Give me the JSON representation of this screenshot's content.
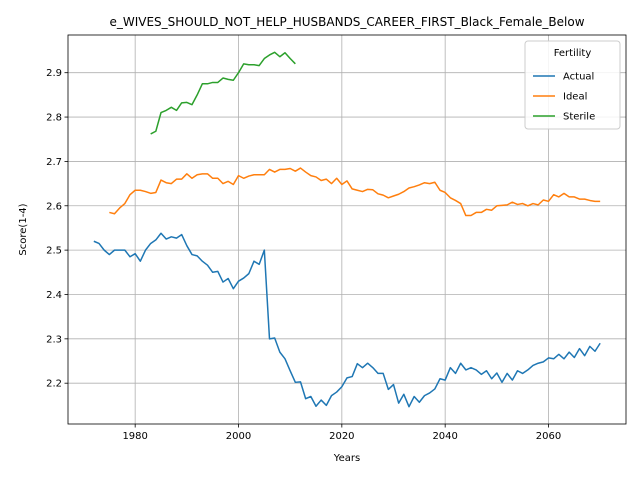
{
  "chart_data": {
    "type": "line",
    "title": "e_WIVES_SHOULD_NOT_HELP_HUSBANDS_CAREER_FIRST_Black_Female_Below",
    "xlabel": "Years",
    "ylabel": "Score(1-4)",
    "xlim": [
      1967,
      2075
    ],
    "ylim": [
      2.108,
      2.985
    ],
    "xticks": [
      1980,
      2000,
      2020,
      2040,
      2060
    ],
    "yticks": [
      2.2,
      2.3,
      2.4,
      2.5,
      2.6,
      2.7,
      2.8,
      2.9
    ],
    "grid": true,
    "legend": {
      "title": "Fertility",
      "position": "top-right"
    },
    "colors": {
      "Actual": "#1f77b4",
      "Ideal": "#ff7f0e",
      "Sterile": "#2ca02c"
    },
    "series": [
      {
        "name": "Actual",
        "x": [
          1972,
          1973,
          1974,
          1975,
          1976,
          1977,
          1978,
          1979,
          1980,
          1981,
          1982,
          1983,
          1984,
          1985,
          1986,
          1987,
          1988,
          1989,
          1990,
          1991,
          1992,
          1993,
          1994,
          1995,
          1996,
          1997,
          1998,
          1999,
          2000,
          2001,
          2002,
          2003,
          2004,
          2005,
          2006,
          2007,
          2008,
          2009,
          2010,
          2011,
          2012,
          2013,
          2014,
          2015,
          2016,
          2017,
          2018,
          2019,
          2020,
          2021,
          2022,
          2023,
          2024,
          2025,
          2026,
          2027,
          2028,
          2029,
          2030,
          2031,
          2032,
          2033,
          2034,
          2035,
          2036,
          2037,
          2038,
          2039,
          2040,
          2041,
          2042,
          2043,
          2044,
          2045,
          2046,
          2047,
          2048,
          2049,
          2050,
          2051,
          2052,
          2053,
          2054,
          2055,
          2056,
          2057,
          2058,
          2059,
          2060,
          2061,
          2062,
          2063,
          2064,
          2065,
          2066,
          2067,
          2068,
          2069,
          2070
        ],
        "values": [
          2.52,
          2.515,
          2.5,
          2.49,
          2.5,
          2.5,
          2.5,
          2.485,
          2.492,
          2.475,
          2.5,
          2.515,
          2.523,
          2.538,
          2.525,
          2.53,
          2.527,
          2.535,
          2.51,
          2.49,
          2.487,
          2.475,
          2.466,
          2.45,
          2.452,
          2.428,
          2.436,
          2.413,
          2.43,
          2.437,
          2.447,
          2.475,
          2.468,
          2.5,
          2.3,
          2.302,
          2.27,
          2.255,
          2.228,
          2.202,
          2.203,
          2.165,
          2.17,
          2.148,
          2.162,
          2.15,
          2.172,
          2.18,
          2.192,
          2.212,
          2.215,
          2.244,
          2.235,
          2.245,
          2.235,
          2.222,
          2.222,
          2.186,
          2.197,
          2.155,
          2.175,
          2.147,
          2.17,
          2.157,
          2.172,
          2.178,
          2.187,
          2.21,
          2.207,
          2.235,
          2.222,
          2.245,
          2.23,
          2.235,
          2.23,
          2.22,
          2.228,
          2.21,
          2.223,
          2.202,
          2.222,
          2.207,
          2.228,
          2.222,
          2.23,
          2.24,
          2.245,
          2.248,
          2.257,
          2.255,
          2.265,
          2.255,
          2.27,
          2.258,
          2.278,
          2.262,
          2.283,
          2.272,
          2.29
        ]
      },
      {
        "name": "Ideal",
        "x": [
          1975,
          1976,
          1977,
          1978,
          1979,
          1980,
          1981,
          1982,
          1983,
          1984,
          1985,
          1986,
          1987,
          1988,
          1989,
          1990,
          1991,
          1992,
          1993,
          1994,
          1995,
          1996,
          1997,
          1998,
          1999,
          2000,
          2001,
          2002,
          2003,
          2004,
          2005,
          2006,
          2007,
          2008,
          2009,
          2010,
          2011,
          2012,
          2013,
          2014,
          2015,
          2016,
          2017,
          2018,
          2019,
          2020,
          2021,
          2022,
          2023,
          2024,
          2025,
          2026,
          2027,
          2028,
          2029,
          2030,
          2031,
          2032,
          2033,
          2034,
          2035,
          2036,
          2037,
          2038,
          2039,
          2040,
          2041,
          2042,
          2043,
          2044,
          2045,
          2046,
          2047,
          2048,
          2049,
          2050,
          2051,
          2052,
          2053,
          2054,
          2055,
          2056,
          2057,
          2058,
          2059,
          2060,
          2061,
          2062,
          2063,
          2064,
          2065,
          2066,
          2067,
          2068,
          2069,
          2070
        ],
        "values": [
          2.585,
          2.582,
          2.595,
          2.605,
          2.625,
          2.635,
          2.635,
          2.632,
          2.628,
          2.63,
          2.658,
          2.652,
          2.65,
          2.66,
          2.66,
          2.672,
          2.662,
          2.67,
          2.672,
          2.672,
          2.662,
          2.662,
          2.65,
          2.655,
          2.648,
          2.668,
          2.662,
          2.667,
          2.67,
          2.67,
          2.67,
          2.682,
          2.676,
          2.682,
          2.682,
          2.684,
          2.678,
          2.685,
          2.676,
          2.668,
          2.665,
          2.657,
          2.66,
          2.65,
          2.662,
          2.648,
          2.656,
          2.638,
          2.635,
          2.632,
          2.637,
          2.636,
          2.627,
          2.624,
          2.618,
          2.622,
          2.626,
          2.632,
          2.64,
          2.643,
          2.647,
          2.652,
          2.65,
          2.653,
          2.635,
          2.63,
          2.618,
          2.612,
          2.605,
          2.578,
          2.578,
          2.585,
          2.585,
          2.592,
          2.59,
          2.6,
          2.601,
          2.602,
          2.608,
          2.603,
          2.605,
          2.6,
          2.605,
          2.602,
          2.613,
          2.61,
          2.625,
          2.62,
          2.628,
          2.62,
          2.62,
          2.615,
          2.615,
          2.612,
          2.61,
          2.61
        ]
      },
      {
        "name": "Sterile",
        "x": [
          1983,
          1984,
          1985,
          1986,
          1987,
          1988,
          1989,
          1990,
          1991,
          1992,
          1993,
          1994,
          1995,
          1996,
          1997,
          1998,
          1999,
          2000,
          2001,
          2002,
          2003,
          2004,
          2005,
          2006,
          2007,
          2008,
          2009,
          2010,
          2011
        ],
        "values": [
          2.762,
          2.768,
          2.81,
          2.815,
          2.822,
          2.815,
          2.832,
          2.833,
          2.828,
          2.85,
          2.875,
          2.875,
          2.878,
          2.878,
          2.888,
          2.885,
          2.883,
          2.9,
          2.92,
          2.918,
          2.918,
          2.916,
          2.932,
          2.94,
          2.946,
          2.936,
          2.945,
          2.932,
          2.92
        ]
      }
    ]
  }
}
